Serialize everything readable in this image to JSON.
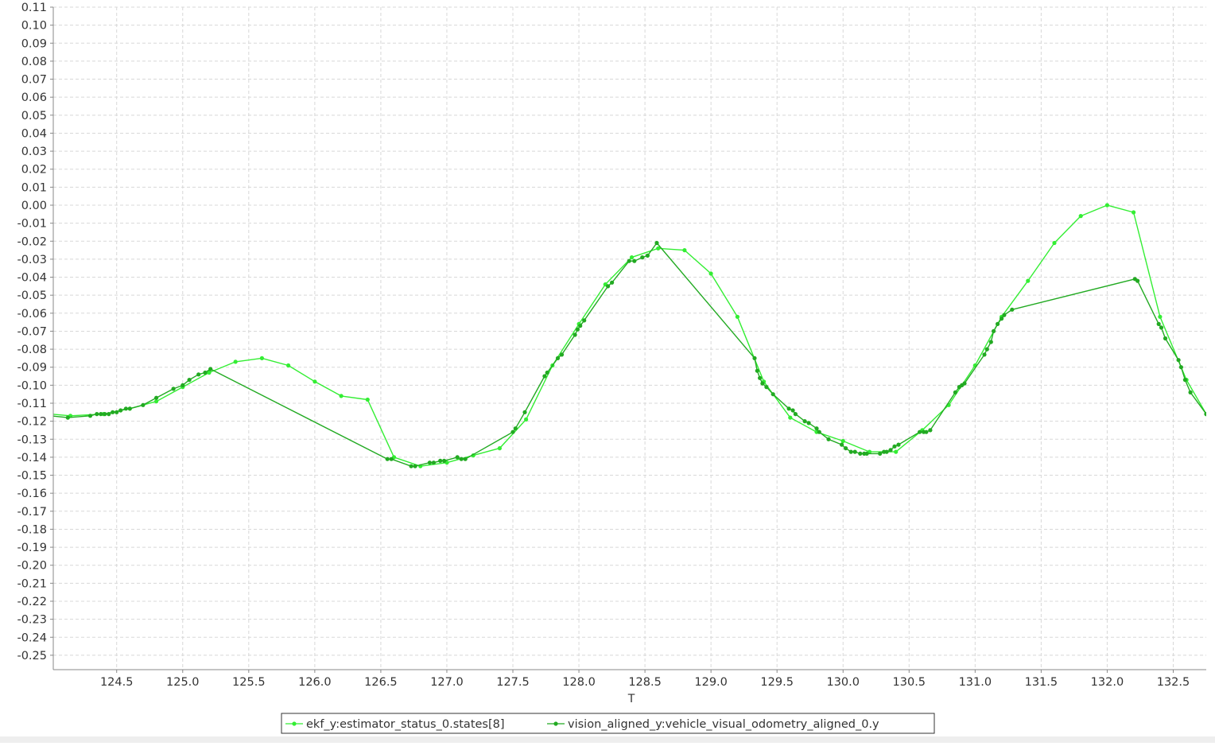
{
  "chart_data": {
    "type": "line",
    "title": "",
    "xlabel": "T",
    "ylabel": "",
    "xlim": [
      124.02,
      132.75
    ],
    "ylim": [
      -0.258,
      0.11
    ],
    "grid": true,
    "legend_position": "bottom-center",
    "x_ticks": [
      "124.5",
      "125.0",
      "125.5",
      "126.0",
      "126.5",
      "127.0",
      "127.5",
      "128.0",
      "128.5",
      "129.0",
      "129.5",
      "130.0",
      "130.5",
      "131.0",
      "131.5",
      "132.0",
      "132.5"
    ],
    "y_ticks": [
      "0.11",
      "0.10",
      "0.09",
      "0.08",
      "0.07",
      "0.06",
      "0.05",
      "0.04",
      "0.03",
      "0.02",
      "0.01",
      "0.00",
      "-0.01",
      "-0.02",
      "-0.03",
      "-0.04",
      "-0.05",
      "-0.06",
      "-0.07",
      "-0.08",
      "-0.09",
      "-0.10",
      "-0.11",
      "-0.12",
      "-0.13",
      "-0.14",
      "-0.15",
      "-0.16",
      "-0.17",
      "-0.18",
      "-0.19",
      "-0.20",
      "-0.21",
      "-0.22",
      "-0.23",
      "-0.24",
      "-0.25"
    ],
    "series": [
      {
        "name": "ekf_y:estimator_status_0.states[8]",
        "color": "#33ee33",
        "x": [
          124.0,
          124.15,
          124.4,
          124.6,
          124.8,
          125.0,
          125.2,
          125.4,
          125.6,
          125.8,
          126.0,
          126.2,
          126.4,
          126.6,
          126.8,
          127.0,
          127.2,
          127.4,
          127.6,
          127.8,
          128.0,
          128.2,
          128.4,
          128.6,
          128.8,
          129.0,
          129.2,
          129.4,
          129.6,
          129.8,
          130.0,
          130.2,
          130.4,
          130.6,
          130.8,
          131.0,
          131.2,
          131.4,
          131.6,
          131.8,
          132.0,
          132.2,
          132.4,
          132.6,
          132.75
        ],
        "y": [
          -0.116,
          -0.117,
          -0.116,
          -0.113,
          -0.109,
          -0.101,
          -0.093,
          -0.087,
          -0.085,
          -0.089,
          -0.098,
          -0.106,
          -0.108,
          -0.14,
          -0.145,
          -0.143,
          -0.139,
          -0.135,
          -0.119,
          -0.089,
          -0.066,
          -0.044,
          -0.029,
          -0.024,
          -0.025,
          -0.038,
          -0.062,
          -0.098,
          -0.118,
          -0.126,
          -0.131,
          -0.137,
          -0.137,
          -0.125,
          -0.111,
          -0.089,
          -0.062,
          -0.042,
          -0.021,
          -0.006,
          0.0,
          -0.004,
          -0.062,
          -0.097,
          -0.116
        ]
      },
      {
        "name": "vision_aligned_y:vehicle_visual_odometry_aligned_0.y",
        "color": "#22aa22",
        "x": [
          124.0,
          124.13,
          124.3,
          124.35,
          124.38,
          124.41,
          124.44,
          124.47,
          124.5,
          124.53,
          124.57,
          124.6,
          124.7,
          124.8,
          124.93,
          125.0,
          125.05,
          125.12,
          125.17,
          125.21,
          126.55,
          126.58,
          126.73,
          126.76,
          126.87,
          126.9,
          126.95,
          126.98,
          127.08,
          127.11,
          127.14,
          127.5,
          127.52,
          127.59,
          127.74,
          127.76,
          127.84,
          127.87,
          127.97,
          127.99,
          128.01,
          128.04,
          128.22,
          128.25,
          128.38,
          128.42,
          128.48,
          128.52,
          128.59,
          129.33,
          129.35,
          129.37,
          129.39,
          129.42,
          129.47,
          129.59,
          129.62,
          129.64,
          129.71,
          129.74,
          129.8,
          129.82,
          129.89,
          129.99,
          130.02,
          130.06,
          130.09,
          130.13,
          130.16,
          130.18,
          130.28,
          130.31,
          130.33,
          130.36,
          130.39,
          130.42,
          130.58,
          130.61,
          130.63,
          130.66,
          130.85,
          130.88,
          130.9,
          130.92,
          131.07,
          131.09,
          131.12,
          131.14,
          131.17,
          131.2,
          131.22,
          131.28,
          132.21,
          132.23,
          132.39,
          132.41,
          132.44,
          132.54,
          132.56,
          132.59,
          132.63,
          132.75
        ],
        "y": [
          -0.117,
          -0.118,
          -0.117,
          -0.116,
          -0.116,
          -0.116,
          -0.116,
          -0.115,
          -0.115,
          -0.114,
          -0.113,
          -0.113,
          -0.111,
          -0.107,
          -0.102,
          -0.1,
          -0.097,
          -0.094,
          -0.093,
          -0.091,
          -0.141,
          -0.141,
          -0.145,
          -0.145,
          -0.143,
          -0.143,
          -0.142,
          -0.142,
          -0.14,
          -0.141,
          -0.141,
          -0.126,
          -0.124,
          -0.115,
          -0.095,
          -0.093,
          -0.085,
          -0.083,
          -0.072,
          -0.069,
          -0.067,
          -0.064,
          -0.045,
          -0.043,
          -0.031,
          -0.031,
          -0.029,
          -0.028,
          -0.021,
          -0.085,
          -0.092,
          -0.096,
          -0.099,
          -0.101,
          -0.105,
          -0.113,
          -0.114,
          -0.116,
          -0.12,
          -0.121,
          -0.124,
          -0.126,
          -0.13,
          -0.133,
          -0.135,
          -0.137,
          -0.137,
          -0.138,
          -0.138,
          -0.138,
          -0.138,
          -0.137,
          -0.137,
          -0.136,
          -0.134,
          -0.133,
          -0.126,
          -0.126,
          -0.126,
          -0.125,
          -0.104,
          -0.101,
          -0.1,
          -0.099,
          -0.083,
          -0.08,
          -0.076,
          -0.07,
          -0.066,
          -0.063,
          -0.061,
          -0.058,
          -0.041,
          -0.042,
          -0.066,
          -0.068,
          -0.074,
          -0.086,
          -0.09,
          -0.097,
          -0.104,
          -0.116
        ]
      }
    ]
  }
}
